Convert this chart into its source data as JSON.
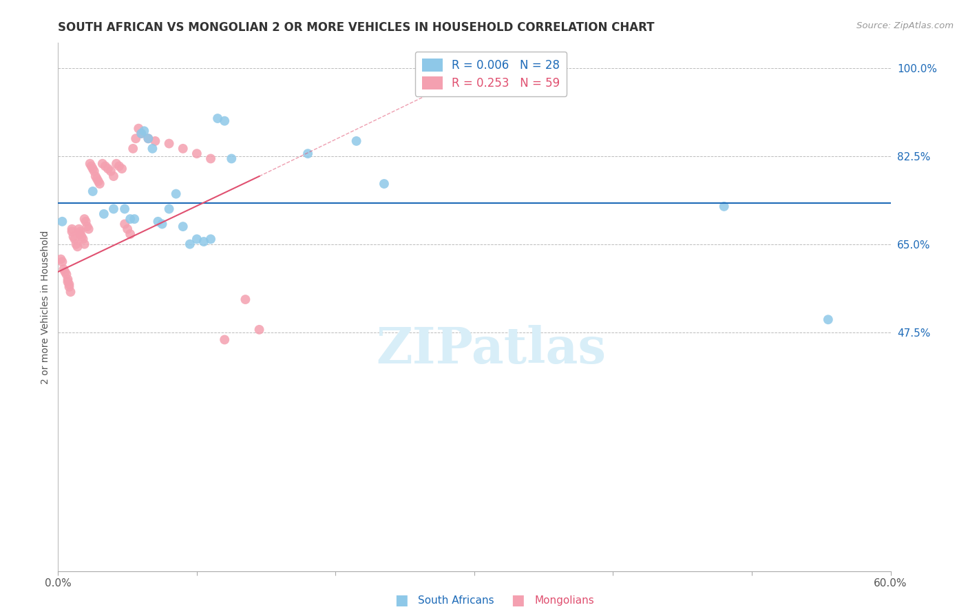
{
  "title": "SOUTH AFRICAN VS MONGOLIAN 2 OR MORE VEHICLES IN HOUSEHOLD CORRELATION CHART",
  "source": "Source: ZipAtlas.com",
  "ylabel": "2 or more Vehicles in Household",
  "xmin": 0.0,
  "xmax": 0.6,
  "ymin": 0.0,
  "ymax": 1.05,
  "xticks": [
    0.0,
    0.1,
    0.2,
    0.3,
    0.4,
    0.5,
    0.6
  ],
  "xtick_labels": [
    "0.0%",
    "",
    "",
    "",
    "",
    "",
    "60.0%"
  ],
  "ytick_positions": [
    0.475,
    0.65,
    0.825,
    1.0
  ],
  "ytick_labels": [
    "47.5%",
    "65.0%",
    "82.5%",
    "100.0%"
  ],
  "legend_entry1": "R = 0.006   N = 28",
  "legend_entry2": "R = 0.253   N = 59",
  "color_sa": "#8EC8E8",
  "color_mn": "#F4A0B0",
  "trendline_sa_color": "#1E6BB8",
  "trendline_mn_color": "#E05070",
  "watermark": "ZIPatlas",
  "sa_x": [
    0.003,
    0.025,
    0.033,
    0.04,
    0.048,
    0.052,
    0.055,
    0.06,
    0.062,
    0.065,
    0.068,
    0.072,
    0.075,
    0.08,
    0.085,
    0.09,
    0.095,
    0.1,
    0.105,
    0.11,
    0.115,
    0.12,
    0.125,
    0.18,
    0.215,
    0.235,
    0.48,
    0.555
  ],
  "sa_y": [
    0.695,
    0.755,
    0.71,
    0.72,
    0.72,
    0.7,
    0.7,
    0.87,
    0.875,
    0.86,
    0.84,
    0.695,
    0.69,
    0.72,
    0.75,
    0.685,
    0.65,
    0.66,
    0.655,
    0.66,
    0.9,
    0.895,
    0.82,
    0.83,
    0.855,
    0.77,
    0.725,
    0.5
  ],
  "mn_x": [
    0.002,
    0.003,
    0.004,
    0.005,
    0.006,
    0.007,
    0.007,
    0.008,
    0.008,
    0.009,
    0.01,
    0.01,
    0.011,
    0.012,
    0.013,
    0.014,
    0.015,
    0.016,
    0.016,
    0.017,
    0.018,
    0.019,
    0.019,
    0.02,
    0.021,
    0.022,
    0.023,
    0.024,
    0.025,
    0.026,
    0.027,
    0.028,
    0.029,
    0.03,
    0.032,
    0.034,
    0.036,
    0.038,
    0.04,
    0.042,
    0.044,
    0.046,
    0.048,
    0.05,
    0.052,
    0.054,
    0.056,
    0.058,
    0.06,
    0.065,
    0.07,
    0.08,
    0.09,
    0.1,
    0.11,
    0.12,
    0.135,
    0.145,
    0.33
  ],
  "mn_y": [
    0.62,
    0.615,
    0.6,
    0.595,
    0.59,
    0.58,
    0.575,
    0.57,
    0.565,
    0.555,
    0.68,
    0.675,
    0.665,
    0.66,
    0.65,
    0.645,
    0.68,
    0.675,
    0.67,
    0.665,
    0.66,
    0.65,
    0.7,
    0.695,
    0.685,
    0.68,
    0.81,
    0.805,
    0.8,
    0.795,
    0.785,
    0.78,
    0.775,
    0.77,
    0.81,
    0.805,
    0.8,
    0.795,
    0.785,
    0.81,
    0.805,
    0.8,
    0.69,
    0.68,
    0.67,
    0.84,
    0.86,
    0.88,
    0.87,
    0.86,
    0.855,
    0.85,
    0.84,
    0.83,
    0.82,
    0.46,
    0.54,
    0.48,
    0.965
  ],
  "grid_yticks": [
    0.475,
    0.65,
    0.825,
    1.0
  ],
  "sa_trendline_y": 0.732,
  "mn_trendline_x0": 0.0,
  "mn_trendline_y0": 0.595,
  "mn_trendline_x1": 0.145,
  "mn_trendline_y1": 0.785,
  "mn_trendline_dash_x1": 0.28,
  "mn_trendline_dash_y1": 0.965
}
